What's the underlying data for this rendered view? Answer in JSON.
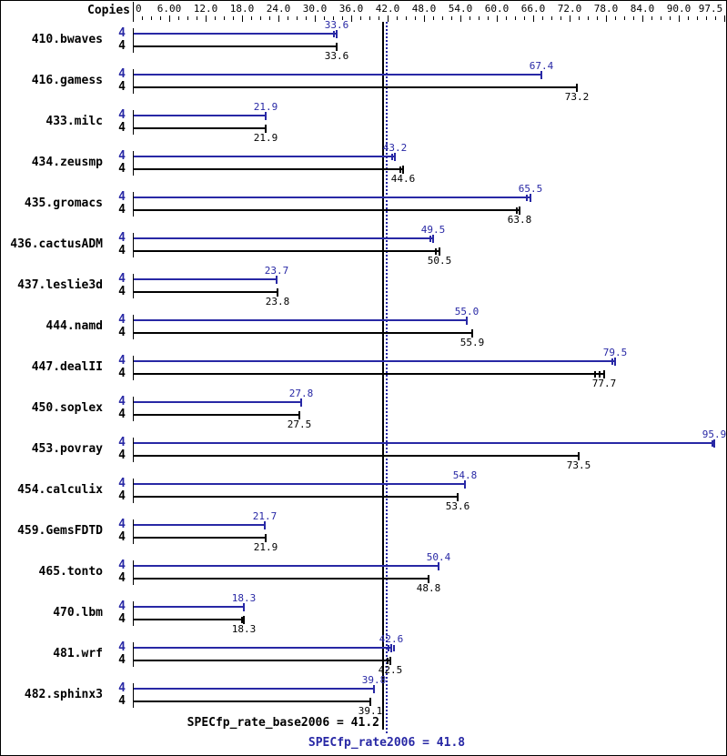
{
  "colors": {
    "peak_blue": "#2828a5",
    "base_black": "#000000",
    "background": "#ffffff",
    "border": "#000000"
  },
  "chart_data": {
    "type": "bar",
    "orientation": "horizontal",
    "copies_header": "Copies",
    "axis": {
      "min": 0,
      "max": 97.5,
      "minor_tick_step": 1.5,
      "tick_values": [
        0,
        6,
        12,
        18,
        24,
        30,
        36,
        42,
        48,
        54,
        60,
        66,
        72,
        78,
        84,
        90,
        97.5
      ],
      "tick_labels": [
        "0",
        "6.00",
        "12.0",
        "18.0",
        "24.0",
        "30.0",
        "36.0",
        "42.0",
        "48.0",
        "54.0",
        "60.0",
        "66.0",
        "72.0",
        "78.0",
        "84.0",
        "90.0",
        "97.5"
      ],
      "grid": false
    },
    "series_names": [
      "peak",
      "base"
    ],
    "benchmarks": [
      {
        "name": "410.bwaves",
        "peak": {
          "copies": "4",
          "value": 33.6,
          "label": "33.6",
          "run_ticks": [
            33.2
          ]
        },
        "base": {
          "copies": "4",
          "value": 33.6,
          "label": "33.6",
          "run_ticks": []
        }
      },
      {
        "name": "416.gamess",
        "peak": {
          "copies": "4",
          "value": 67.4,
          "label": "67.4",
          "run_ticks": []
        },
        "base": {
          "copies": "4",
          "value": 73.2,
          "label": "73.2",
          "run_ticks": []
        }
      },
      {
        "name": "433.milc",
        "peak": {
          "copies": "4",
          "value": 21.9,
          "label": "21.9",
          "run_ticks": []
        },
        "base": {
          "copies": "4",
          "value": 21.9,
          "label": "21.9",
          "run_ticks": []
        }
      },
      {
        "name": "434.zeusmp",
        "peak": {
          "copies": "4",
          "value": 43.2,
          "label": "43.2",
          "run_ticks": [
            42.7
          ]
        },
        "base": {
          "copies": "4",
          "value": 44.6,
          "label": "44.6",
          "run_ticks": [
            44.1
          ]
        }
      },
      {
        "name": "435.gromacs",
        "peak": {
          "copies": "4",
          "value": 65.5,
          "label": "65.5",
          "run_ticks": [
            65.0
          ]
        },
        "base": {
          "copies": "4",
          "value": 63.8,
          "label": "63.8",
          "run_ticks": [
            63.3
          ]
        }
      },
      {
        "name": "436.cactusADM",
        "peak": {
          "copies": "4",
          "value": 49.5,
          "label": "49.5",
          "run_ticks": [
            49.0
          ]
        },
        "base": {
          "copies": "4",
          "value": 50.5,
          "label": "50.5",
          "run_ticks": [
            50.0
          ]
        }
      },
      {
        "name": "437.leslie3d",
        "peak": {
          "copies": "4",
          "value": 23.7,
          "label": "23.7",
          "run_ticks": []
        },
        "base": {
          "copies": "4",
          "value": 23.8,
          "label": "23.8",
          "run_ticks": []
        }
      },
      {
        "name": "444.namd",
        "peak": {
          "copies": "4",
          "value": 55.0,
          "label": "55.0",
          "run_ticks": []
        },
        "base": {
          "copies": "4",
          "value": 55.9,
          "label": "55.9",
          "run_ticks": []
        }
      },
      {
        "name": "447.dealII",
        "peak": {
          "copies": "4",
          "value": 79.5,
          "label": "79.5",
          "run_ticks": [
            79.1
          ]
        },
        "base": {
          "copies": "4",
          "value": 77.7,
          "label": "77.7",
          "run_ticks": [
            77.0,
            76.2
          ]
        }
      },
      {
        "name": "450.soplex",
        "peak": {
          "copies": "4",
          "value": 27.8,
          "label": "27.8",
          "run_ticks": []
        },
        "base": {
          "copies": "4",
          "value": 27.5,
          "label": "27.5",
          "run_ticks": []
        }
      },
      {
        "name": "453.povray",
        "peak": {
          "copies": "4",
          "value": 95.9,
          "label": "95.9",
          "run_ticks": [
            95.5
          ]
        },
        "base": {
          "copies": "4",
          "value": 73.5,
          "label": "73.5",
          "run_ticks": []
        }
      },
      {
        "name": "454.calculix",
        "peak": {
          "copies": "4",
          "value": 54.8,
          "label": "54.8",
          "run_ticks": []
        },
        "base": {
          "copies": "4",
          "value": 53.6,
          "label": "53.6",
          "run_ticks": []
        }
      },
      {
        "name": "459.GemsFDTD",
        "peak": {
          "copies": "4",
          "value": 21.7,
          "label": "21.7",
          "run_ticks": []
        },
        "base": {
          "copies": "4",
          "value": 21.9,
          "label": "21.9",
          "run_ticks": []
        }
      },
      {
        "name": "465.tonto",
        "peak": {
          "copies": "4",
          "value": 50.4,
          "label": "50.4",
          "run_ticks": []
        },
        "base": {
          "copies": "4",
          "value": 48.8,
          "label": "48.8",
          "run_ticks": []
        }
      },
      {
        "name": "470.lbm",
        "peak": {
          "copies": "4",
          "value": 18.3,
          "label": "18.3",
          "run_ticks": []
        },
        "base": {
          "copies": "4",
          "value": 18.3,
          "label": "18.3",
          "run_ticks": [
            18.0
          ]
        }
      },
      {
        "name": "481.wrf",
        "peak": {
          "copies": "4",
          "value": 42.6,
          "label": "42.6",
          "run_ticks": [
            42.1,
            43.0
          ]
        },
        "base": {
          "copies": "4",
          "value": 42.5,
          "label": "42.5",
          "run_ticks": [
            42.0
          ]
        }
      },
      {
        "name": "482.sphinx3",
        "peak": {
          "copies": "4",
          "value": 39.8,
          "label": "39.8",
          "run_ticks": []
        },
        "base": {
          "copies": "4",
          "value": 39.1,
          "label": "39.1",
          "run_ticks": []
        }
      }
    ],
    "reference_lines": [
      {
        "id": "base",
        "label": "SPECfp_rate_base2006 = 41.2",
        "value": 41.2,
        "style": "solid",
        "color": "#000000"
      },
      {
        "id": "peak",
        "label": "SPECfp_rate2006 = 41.8",
        "value": 41.8,
        "style": "dotted",
        "color": "#2828a5"
      }
    ]
  }
}
